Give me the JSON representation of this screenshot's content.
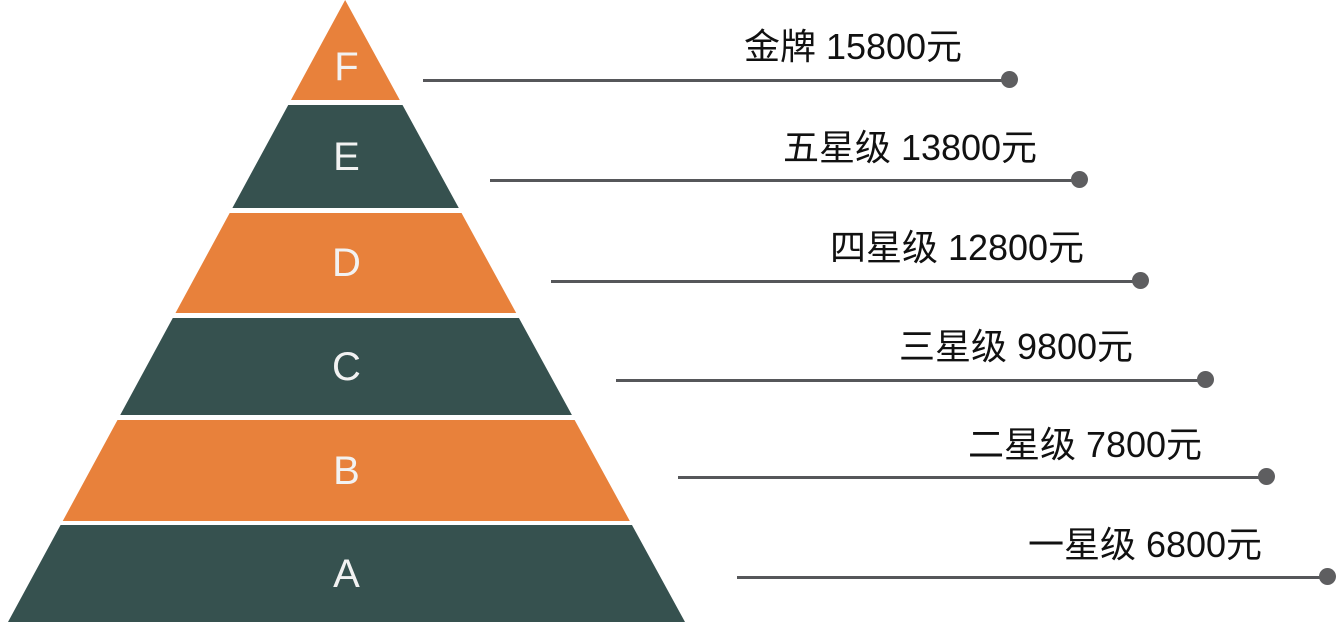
{
  "chart_data": {
    "type": "pyramid",
    "orientation": "apex-top",
    "description": "Six-tier pricing pyramid with leader lines to price labels on the right",
    "levels": [
      {
        "tier": "F",
        "name": "金牌",
        "price_yuan": 15800,
        "label_text": "金牌 15800元",
        "color": "#E8813B"
      },
      {
        "tier": "E",
        "name": "五星级",
        "price_yuan": 13800,
        "label_text": "五星级 13800元",
        "color": "#36514F"
      },
      {
        "tier": "D",
        "name": "四星级",
        "price_yuan": 12800,
        "label_text": "四星级 12800元",
        "color": "#E8813B"
      },
      {
        "tier": "C",
        "name": "三星级",
        "price_yuan": 9800,
        "label_text": "三星级 9800元",
        "color": "#36514F"
      },
      {
        "tier": "B",
        "name": "二星级",
        "price_yuan": 7800,
        "label_text": "二星级 7800元",
        "color": "#E8813B"
      },
      {
        "tier": "A",
        "name": "一星级",
        "price_yuan": 6800,
        "label_text": "一星级 6800元",
        "color": "#36514F"
      }
    ],
    "colors": {
      "orange": "#E8813B",
      "teal": "#36514F",
      "leader_line": "#56575a",
      "dot": "#5e5e60",
      "tier_letter": "#f2f2f2",
      "label_text": "#111111",
      "background": "#ffffff"
    },
    "legend_position": "right",
    "grid": false
  }
}
